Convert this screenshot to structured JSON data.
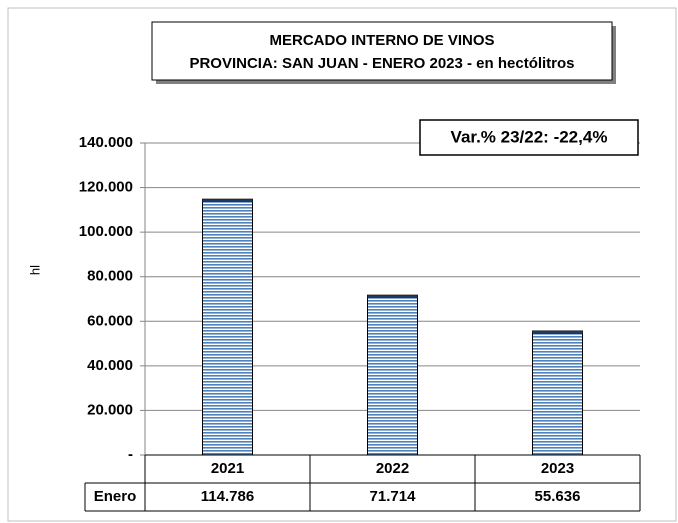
{
  "chart_data": {
    "type": "bar",
    "title": "MERCADO INTERNO DE VINOS",
    "subtitle": "PROVINCIA: SAN JUAN - ENERO 2023 - en hectólitros",
    "annotation": "Var.% 23/22: -22,4%",
    "y_label": "hl",
    "categories": [
      "2021",
      "2022",
      "2023"
    ],
    "series": [
      {
        "name": "Enero",
        "color": "#4f81bd",
        "values": [
          114786,
          71714,
          55636
        ],
        "value_labels": [
          "114.786",
          "71.714",
          "55.636"
        ]
      }
    ],
    "ylim": [
      0,
      140000
    ],
    "yticks": [
      {
        "value": 0,
        "label": "-"
      },
      {
        "value": 20000,
        "label": "20.000"
      },
      {
        "value": 40000,
        "label": "40.000"
      },
      {
        "value": 60000,
        "label": "60.000"
      },
      {
        "value": 80000,
        "label": "80.000"
      },
      {
        "value": 100000,
        "label": "100.000"
      },
      {
        "value": 120000,
        "label": "120.000"
      },
      {
        "value": 140000,
        "label": "140.000"
      }
    ],
    "grid": true
  }
}
